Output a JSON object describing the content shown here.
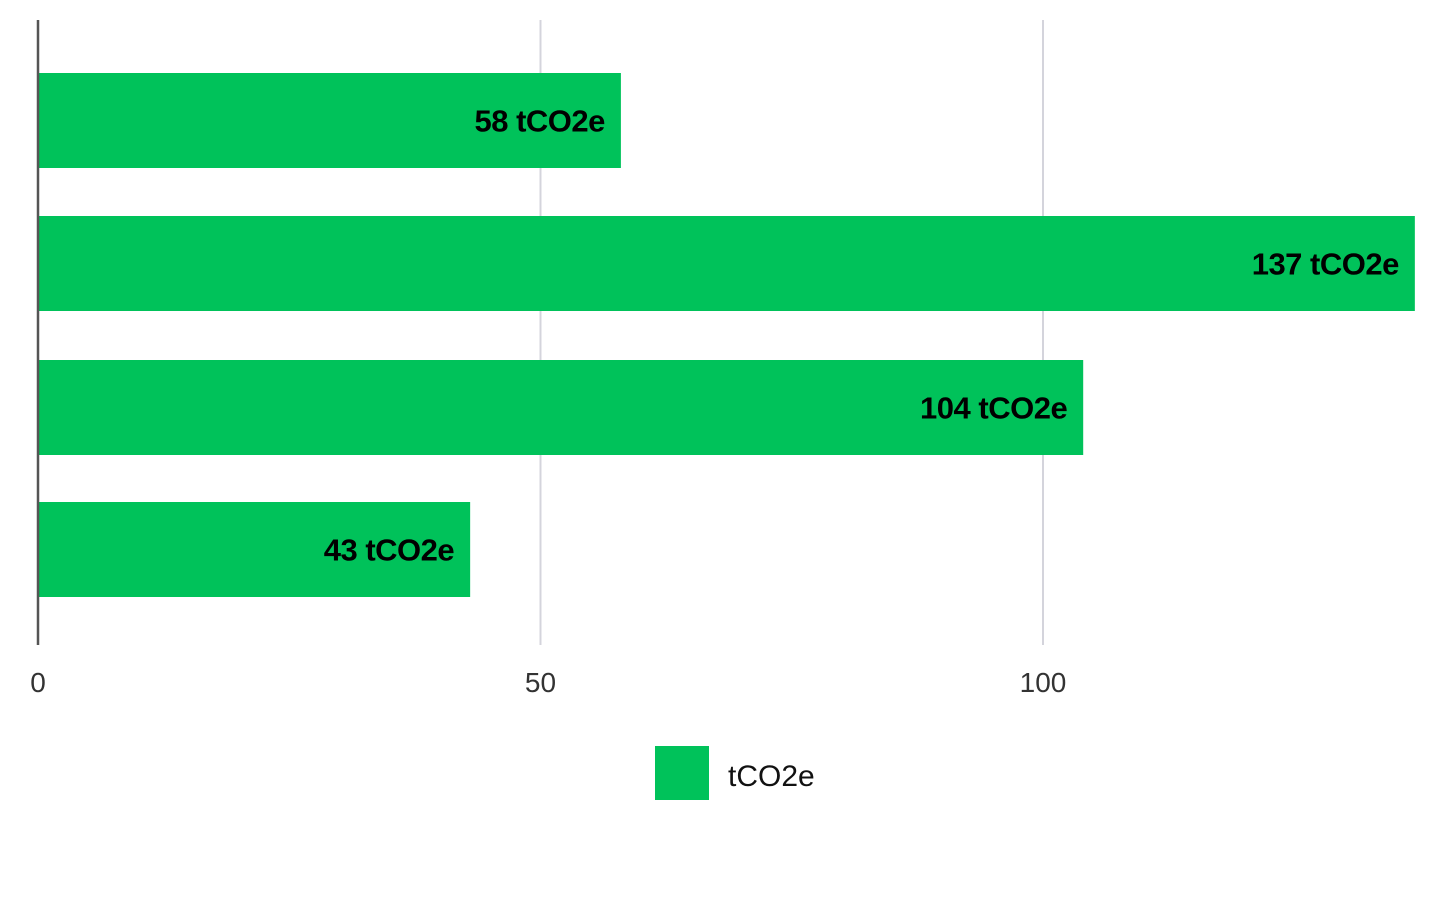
{
  "chart_data": {
    "type": "bar",
    "orientation": "horizontal",
    "title": "",
    "xlabel": "",
    "ylabel": "",
    "categories": [
      "",
      "",
      "",
      ""
    ],
    "series": [
      {
        "name": "tCO2e",
        "values": [
          58,
          137,
          104,
          43
        ],
        "data_labels": [
          "58 tCO2e",
          "137 tCO2e",
          "104 tCO2e",
          "43 tCO2e"
        ],
        "color": "#00c25a"
      }
    ],
    "x_ticks": [
      0,
      50,
      100
    ],
    "xlim": [
      0,
      137
    ],
    "grid": true,
    "legend": {
      "position": "bottom-center",
      "entries": [
        "tCO2e"
      ]
    }
  }
}
